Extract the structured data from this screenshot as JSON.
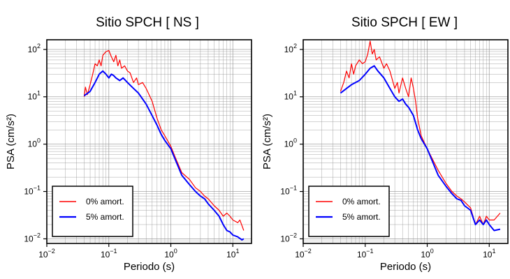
{
  "colors": {
    "undamped": "#ff0000",
    "damped": "#0000ff",
    "grid": "#888888",
    "frame": "#000000"
  },
  "chart_data": [
    {
      "type": "line",
      "title": "Sitio SPCH [ NS ]",
      "xlabel": "Periodo (s)",
      "ylabel": "PSA (cm/s²)",
      "xscale": "log",
      "yscale": "log",
      "xlim": [
        0.01,
        20
      ],
      "ylim": [
        0.008,
        160
      ],
      "xticks": [
        0.01,
        0.1,
        1,
        10
      ],
      "xtick_labels": [
        {
          "base": "10",
          "exp": "−2"
        },
        {
          "base": "10",
          "exp": "−1"
        },
        {
          "base": "10",
          "exp": "0"
        },
        {
          "base": "10",
          "exp": "1"
        }
      ],
      "yticks": [
        0.01,
        0.1,
        1,
        10,
        100
      ],
      "ytick_labels": [
        {
          "base": "10",
          "exp": "−2"
        },
        {
          "base": "10",
          "exp": "−1"
        },
        {
          "base": "10",
          "exp": "0"
        },
        {
          "base": "10",
          "exp": "1"
        },
        {
          "base": "10",
          "exp": "2"
        }
      ],
      "grid": true,
      "legend_position": "bottom-left",
      "series": [
        {
          "name": "0% amort.",
          "color": "#ff0000",
          "points": [
            [
              0.04,
              10
            ],
            [
              0.042,
              16
            ],
            [
              0.045,
              11
            ],
            [
              0.05,
              18
            ],
            [
              0.055,
              30
            ],
            [
              0.06,
              50
            ],
            [
              0.065,
              45
            ],
            [
              0.07,
              60
            ],
            [
              0.075,
              45
            ],
            [
              0.08,
              75
            ],
            [
              0.09,
              90
            ],
            [
              0.1,
              95
            ],
            [
              0.11,
              70
            ],
            [
              0.12,
              55
            ],
            [
              0.13,
              75
            ],
            [
              0.14,
              45
            ],
            [
              0.15,
              60
            ],
            [
              0.16,
              40
            ],
            [
              0.18,
              45
            ],
            [
              0.2,
              35
            ],
            [
              0.22,
              32
            ],
            [
              0.25,
              20
            ],
            [
              0.28,
              25
            ],
            [
              0.3,
              18
            ],
            [
              0.35,
              20
            ],
            [
              0.4,
              15
            ],
            [
              0.5,
              8
            ],
            [
              0.6,
              3.5
            ],
            [
              0.7,
              2
            ],
            [
              0.8,
              1.5
            ],
            [
              1.0,
              0.9
            ],
            [
              1.2,
              0.5
            ],
            [
              1.5,
              0.25
            ],
            [
              2.0,
              0.18
            ],
            [
              2.5,
              0.12
            ],
            [
              3.0,
              0.1
            ],
            [
              3.5,
              0.08
            ],
            [
              4.0,
              0.07
            ],
            [
              5.0,
              0.05
            ],
            [
              6.0,
              0.04
            ],
            [
              7.0,
              0.03
            ],
            [
              8.0,
              0.035
            ],
            [
              9.0,
              0.03
            ],
            [
              10.0,
              0.025
            ],
            [
              12.0,
              0.022
            ],
            [
              13.0,
              0.025
            ],
            [
              15.0,
              0.015
            ]
          ]
        },
        {
          "name": "5% amort.",
          "color": "#0000ff",
          "points": [
            [
              0.04,
              10.5
            ],
            [
              0.05,
              13
            ],
            [
              0.06,
              20
            ],
            [
              0.07,
              30
            ],
            [
              0.08,
              35
            ],
            [
              0.09,
              30
            ],
            [
              0.1,
              25
            ],
            [
              0.11,
              30
            ],
            [
              0.12,
              28
            ],
            [
              0.13,
              25
            ],
            [
              0.15,
              22
            ],
            [
              0.17,
              25
            ],
            [
              0.2,
              20
            ],
            [
              0.25,
              15
            ],
            [
              0.3,
              12
            ],
            [
              0.35,
              9
            ],
            [
              0.4,
              7
            ],
            [
              0.5,
              4
            ],
            [
              0.6,
              2.5
            ],
            [
              0.7,
              1.6
            ],
            [
              0.8,
              1.2
            ],
            [
              1.0,
              0.8
            ],
            [
              1.2,
              0.45
            ],
            [
              1.5,
              0.22
            ],
            [
              2.0,
              0.14
            ],
            [
              2.5,
              0.1
            ],
            [
              3.0,
              0.08
            ],
            [
              3.5,
              0.07
            ],
            [
              4.0,
              0.055
            ],
            [
              5.0,
              0.04
            ],
            [
              6.0,
              0.03
            ],
            [
              7.0,
              0.02
            ],
            [
              8.0,
              0.015
            ],
            [
              9.0,
              0.014
            ],
            [
              10.0,
              0.012
            ],
            [
              12.0,
              0.011
            ],
            [
              14.0,
              0.0095
            ],
            [
              15.0,
              0.01
            ]
          ]
        }
      ]
    },
    {
      "type": "line",
      "title": "Sitio SPCH [ EW ]",
      "xlabel": "Periodo (s)",
      "ylabel": "PSA (cm/s²)",
      "xscale": "log",
      "yscale": "log",
      "xlim": [
        0.01,
        20
      ],
      "ylim": [
        0.008,
        160
      ],
      "xticks": [
        0.01,
        0.1,
        1,
        10
      ],
      "xtick_labels": [
        {
          "base": "10",
          "exp": "−2"
        },
        {
          "base": "10",
          "exp": "−1"
        },
        {
          "base": "10",
          "exp": "0"
        },
        {
          "base": "10",
          "exp": "1"
        }
      ],
      "yticks": [
        0.01,
        0.1,
        1,
        10,
        100
      ],
      "ytick_labels": [
        {
          "base": "10",
          "exp": "−2"
        },
        {
          "base": "10",
          "exp": "−1"
        },
        {
          "base": "10",
          "exp": "0"
        },
        {
          "base": "10",
          "exp": "1"
        },
        {
          "base": "10",
          "exp": "2"
        }
      ],
      "grid": true,
      "legend_position": "bottom-left",
      "series": [
        {
          "name": "0% amort.",
          "color": "#ff0000",
          "points": [
            [
              0.04,
              13
            ],
            [
              0.045,
              20
            ],
            [
              0.05,
              35
            ],
            [
              0.055,
              25
            ],
            [
              0.06,
              50
            ],
            [
              0.065,
              30
            ],
            [
              0.07,
              45
            ],
            [
              0.08,
              60
            ],
            [
              0.09,
              50
            ],
            [
              0.1,
              55
            ],
            [
              0.11,
              80
            ],
            [
              0.12,
              150
            ],
            [
              0.13,
              80
            ],
            [
              0.14,
              100
            ],
            [
              0.15,
              60
            ],
            [
              0.17,
              70
            ],
            [
              0.2,
              40
            ],
            [
              0.22,
              50
            ],
            [
              0.25,
              35
            ],
            [
              0.3,
              15
            ],
            [
              0.33,
              20
            ],
            [
              0.35,
              12
            ],
            [
              0.4,
              25
            ],
            [
              0.45,
              15
            ],
            [
              0.5,
              10
            ],
            [
              0.55,
              25
            ],
            [
              0.6,
              15
            ],
            [
              0.65,
              8
            ],
            [
              0.7,
              3.5
            ],
            [
              0.8,
              1.5
            ],
            [
              1.0,
              0.8
            ],
            [
              1.2,
              0.5
            ],
            [
              1.5,
              0.28
            ],
            [
              2.0,
              0.15
            ],
            [
              2.5,
              0.1
            ],
            [
              3.0,
              0.08
            ],
            [
              3.5,
              0.07
            ],
            [
              4.0,
              0.06
            ],
            [
              5.0,
              0.045
            ],
            [
              6.0,
              0.02
            ],
            [
              7.0,
              0.03
            ],
            [
              8.0,
              0.02
            ],
            [
              9.0,
              0.03
            ],
            [
              10.0,
              0.025
            ],
            [
              12.0,
              0.025
            ],
            [
              15.0,
              0.035
            ]
          ]
        },
        {
          "name": "5% amort.",
          "color": "#0000ff",
          "points": [
            [
              0.04,
              12
            ],
            [
              0.05,
              15
            ],
            [
              0.06,
              18
            ],
            [
              0.07,
              20
            ],
            [
              0.08,
              22
            ],
            [
              0.1,
              30
            ],
            [
              0.12,
              40
            ],
            [
              0.14,
              45
            ],
            [
              0.16,
              35
            ],
            [
              0.2,
              25
            ],
            [
              0.25,
              15
            ],
            [
              0.3,
              10
            ],
            [
              0.35,
              8
            ],
            [
              0.4,
              9
            ],
            [
              0.45,
              7
            ],
            [
              0.5,
              6
            ],
            [
              0.6,
              4
            ],
            [
              0.7,
              2
            ],
            [
              0.8,
              1.3
            ],
            [
              1.0,
              0.8
            ],
            [
              1.2,
              0.45
            ],
            [
              1.5,
              0.22
            ],
            [
              2.0,
              0.13
            ],
            [
              2.5,
              0.09
            ],
            [
              3.0,
              0.07
            ],
            [
              3.5,
              0.065
            ],
            [
              4.0,
              0.05
            ],
            [
              5.0,
              0.04
            ],
            [
              6.0,
              0.02
            ],
            [
              7.0,
              0.025
            ],
            [
              8.0,
              0.02
            ],
            [
              9.0,
              0.025
            ],
            [
              10.0,
              0.02
            ],
            [
              12.0,
              0.015
            ],
            [
              15.0,
              0.016
            ]
          ]
        }
      ]
    }
  ]
}
